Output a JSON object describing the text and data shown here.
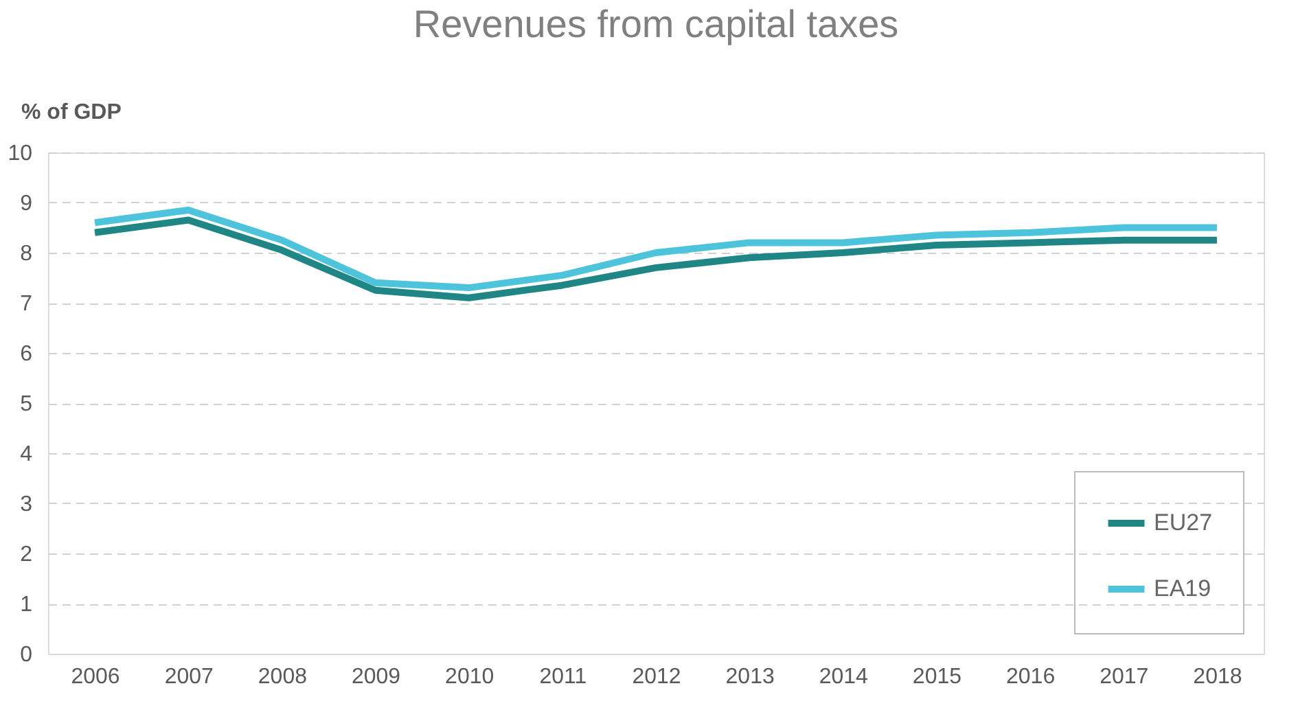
{
  "chart_data": {
    "type": "line",
    "title": "Revenues from capital taxes",
    "ylabel": "% of GDP",
    "categories": [
      "2006",
      "2007",
      "2008",
      "2009",
      "2010",
      "2011",
      "2012",
      "2013",
      "2014",
      "2015",
      "2016",
      "2017",
      "2018"
    ],
    "series": [
      {
        "name": "EU27",
        "color": "#1f8585",
        "values": [
          8.4,
          8.65,
          8.05,
          7.25,
          7.1,
          7.35,
          7.7,
          7.9,
          8.0,
          8.15,
          8.2,
          8.25,
          8.25
        ]
      },
      {
        "name": "EA19",
        "color": "#4dc3dc",
        "values": [
          8.6,
          8.85,
          8.25,
          7.4,
          7.3,
          7.55,
          8.0,
          8.2,
          8.2,
          8.35,
          8.4,
          8.5,
          8.5
        ]
      }
    ],
    "ylim": [
      0,
      10
    ],
    "yticks": [
      0,
      1,
      2,
      3,
      4,
      5,
      6,
      7,
      8,
      9,
      10
    ],
    "grid": "y",
    "legend": "bottom right",
    "line_style": "solid",
    "marker": "none"
  }
}
